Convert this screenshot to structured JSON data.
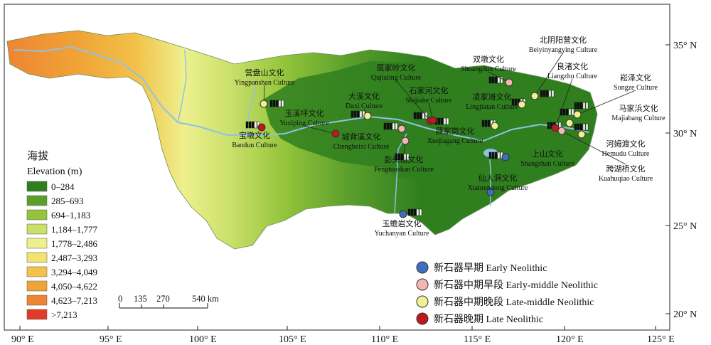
{
  "axes": {
    "x_ticks": [
      "90° E",
      "95° E",
      "100° E",
      "105° E",
      "110° E",
      "115° E",
      "120° E",
      "125° E"
    ],
    "y_ticks": [
      "35° N",
      "30° N",
      "25° N",
      "20° N"
    ]
  },
  "elevation_legend": {
    "title_cn": "海拔",
    "title_en": "Elevation (m)",
    "classes": [
      {
        "label": "0–284",
        "color": "#2f7f1f"
      },
      {
        "label": "285–693",
        "color": "#5a9e2c"
      },
      {
        "label": "694–1,183",
        "color": "#94c43b"
      },
      {
        "label": "1,184–1,777",
        "color": "#c9e06a"
      },
      {
        "label": "1,778–2,486",
        "color": "#eef08e"
      },
      {
        "label": "2,487–3,293",
        "color": "#f2e26e"
      },
      {
        "label": "3,294–4,049",
        "color": "#f2c24a"
      },
      {
        "label": "4,050–4,622",
        "color": "#f0a336"
      },
      {
        "label": "4,623–7,213",
        "color": "#ee8534"
      },
      {
        "label": ">7,213",
        "color": "#e23a26"
      }
    ]
  },
  "scale_bar": {
    "labels": [
      "0",
      "135",
      "270",
      "540 km"
    ]
  },
  "periods": [
    {
      "label": "新石器早期 Early Neolithic",
      "color": "#3f6fbf"
    },
    {
      "label": "新石器中期早段 Early-middle Neolithic",
      "color": "#f4b6b0"
    },
    {
      "label": "新石器中期晚段 Late-middle Neolithic",
      "color": "#f2f08e"
    },
    {
      "label": "新石器晚期 Late Neolithic",
      "color": "#c0181c"
    }
  ],
  "sites": [
    {
      "cn": "营盘山文化",
      "en": "Yingpanshan Culture",
      "period": 2
    },
    {
      "cn": "宝墩文化",
      "en": "Baodun Culture",
      "period": 3
    },
    {
      "cn": "玉溪坪文化",
      "en": "Yuxiping Culture",
      "period": 3
    },
    {
      "cn": "大溪文化",
      "en": "Daxi Culture",
      "period": 2
    },
    {
      "cn": "城背溪文化",
      "en": "Chengbeixi Culture",
      "period": 1
    },
    {
      "cn": "彭头山文化",
      "en": "Pengtoushan Culture",
      "period": 1
    },
    {
      "cn": "屈家岭文化",
      "en": "Qujialing Culture",
      "period": 3
    },
    {
      "cn": "石家河文化",
      "en": "Shijiahe Culture",
      "period": 3
    },
    {
      "cn": "薛家岗文化",
      "en": "Xuejiagang Culture",
      "period": 2
    },
    {
      "cn": "凌家滩文化",
      "en": "Lingjiatan Culture",
      "period": 2
    },
    {
      "cn": "双墩文化",
      "en": "Shuangdun Culture",
      "period": 1
    },
    {
      "cn": "北阴阳营文化",
      "en": "Beiyinyangying Culture",
      "period": 2
    },
    {
      "cn": "良渚文化",
      "en": "Liangzhu Culture",
      "period": 3
    },
    {
      "cn": "崧泽文化",
      "en": "Songze Culture",
      "period": 2
    },
    {
      "cn": "马家浜文化",
      "en": "Majiabang Culture",
      "period": 2
    },
    {
      "cn": "河姆渡文化",
      "en": "Hemudu Culture",
      "period": 2
    },
    {
      "cn": "跨湖桥文化",
      "en": "Kuahuqiao Culture",
      "period": 1
    },
    {
      "cn": "上山文化",
      "en": "Shangshan Culture",
      "period": 0
    },
    {
      "cn": "仙人洞文化",
      "en": "Xianrendong Culture",
      "period": 0
    },
    {
      "cn": "玉蟾岩文化",
      "en": "Yuchanyan Culture",
      "period": 0
    }
  ]
}
